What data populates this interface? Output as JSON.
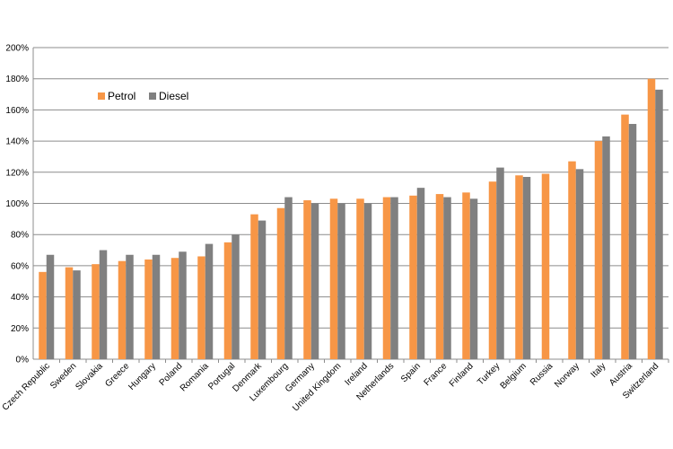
{
  "chart_data": {
    "type": "bar",
    "title": "",
    "xlabel": "",
    "ylabel": "",
    "ylim": [
      0,
      200
    ],
    "y_tick_step": 20,
    "y_tick_suffix": "%",
    "grid": true,
    "legend_position": "top-left",
    "categories": [
      "Czech Republic",
      "Sweden",
      "Slovakia",
      "Greece",
      "Hungary",
      "Poland",
      "Romania",
      "Portugal",
      "Denmark",
      "Luxembourg",
      "Germany",
      "United Kingdom",
      "Ireland",
      "Netherlands",
      "Spain",
      "France",
      "Finland",
      "Turkey",
      "Belgium",
      "Russia",
      "Norway",
      "Italy",
      "Austria",
      "Switzerland"
    ],
    "series": [
      {
        "name": "Petrol",
        "color": "#F79646",
        "values": [
          56,
          59,
          61,
          63,
          64,
          65,
          66,
          75,
          93,
          97,
          102,
          103,
          103,
          104,
          105,
          106,
          107,
          114,
          118,
          119,
          127,
          140,
          157,
          180
        ]
      },
      {
        "name": "Diesel",
        "color": "#808080",
        "values": [
          67,
          57,
          70,
          67,
          67,
          69,
          74,
          80,
          89,
          104,
          100,
          100,
          100,
          104,
          110,
          104,
          103,
          123,
          117,
          null,
          122,
          143,
          151,
          173
        ]
      }
    ]
  }
}
